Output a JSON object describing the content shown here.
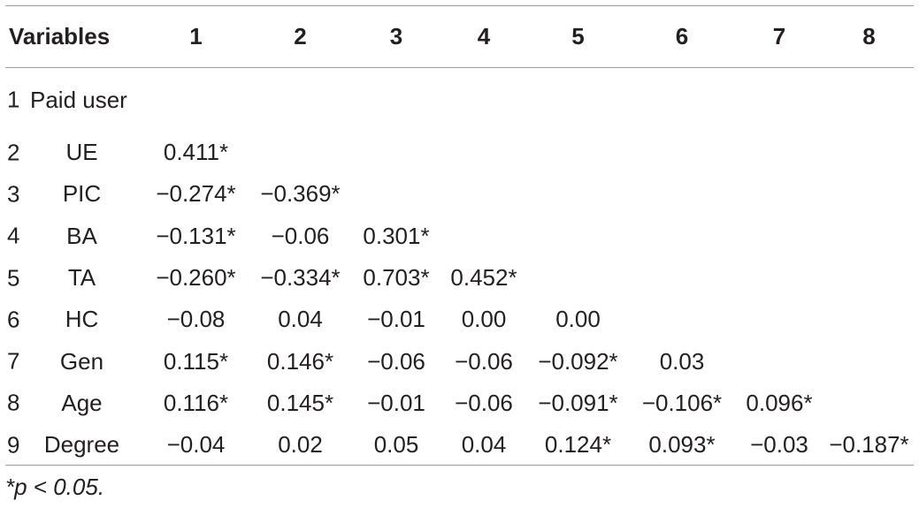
{
  "table": {
    "header": [
      "Variables",
      "1",
      "2",
      "3",
      "4",
      "5",
      "6",
      "7",
      "8"
    ],
    "rows": [
      {
        "num": "1",
        "label": "Paid user",
        "values": [
          "",
          "",
          "",
          "",
          "",
          "",
          "",
          ""
        ]
      },
      {
        "num": "2",
        "label": "UE",
        "values": [
          "0.411*",
          "",
          "",
          "",
          "",
          "",
          "",
          ""
        ]
      },
      {
        "num": "3",
        "label": "PIC",
        "values": [
          "−0.274*",
          "−0.369*",
          "",
          "",
          "",
          "",
          "",
          ""
        ]
      },
      {
        "num": "4",
        "label": "BA",
        "values": [
          "−0.131*",
          "−0.06",
          "0.301*",
          "",
          "",
          "",
          "",
          ""
        ]
      },
      {
        "num": "5",
        "label": "TA",
        "values": [
          "−0.260*",
          "−0.334*",
          "0.703*",
          "0.452*",
          "",
          "",
          "",
          ""
        ]
      },
      {
        "num": "6",
        "label": "HC",
        "values": [
          "−0.08",
          "0.04",
          "−0.01",
          "0.00",
          "0.00",
          "",
          "",
          ""
        ]
      },
      {
        "num": "7",
        "label": "Gen",
        "values": [
          "0.115*",
          "0.146*",
          "−0.06",
          "−0.06",
          "−0.092*",
          "0.03",
          "",
          ""
        ]
      },
      {
        "num": "8",
        "label": "Age",
        "values": [
          "0.116*",
          "0.145*",
          "−0.01",
          "−0.06",
          "−0.091*",
          "−0.106*",
          "0.096*",
          ""
        ]
      },
      {
        "num": "9",
        "label": "Degree",
        "values": [
          "−0.04",
          "0.02",
          "0.05",
          "0.04",
          "0.124*",
          "0.093*",
          "−0.03",
          "−0.187*"
        ]
      }
    ]
  },
  "footnote": "*p < 0.05."
}
